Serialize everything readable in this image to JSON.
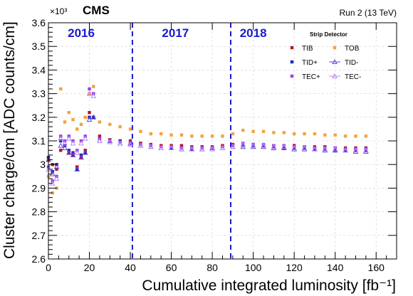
{
  "chart_data": {
    "type": "scatter",
    "experiment": "CMS",
    "run_label": "Run 2 (13 TeV)",
    "exponent_label": "×10³",
    "xlabel": "Cumulative integrated luminosity [fb⁻¹]",
    "ylabel": "Cluster charge/cm [ADC counts/cm]",
    "xlim": [
      0,
      170
    ],
    "ylim": [
      2.6,
      3.6
    ],
    "grid": true,
    "x_ticks": [
      "0",
      "20",
      "40",
      "60",
      "80",
      "100",
      "120",
      "140",
      "160"
    ],
    "y_ticks": [
      "2.6",
      "2.7",
      "2.8",
      "2.9",
      "3",
      "3.1",
      "3.2",
      "3.3",
      "3.4",
      "3.5",
      "3.6"
    ],
    "year_boundaries": [
      41,
      89
    ],
    "years": [
      {
        "label": "2016",
        "x_center": 16
      },
      {
        "label": "2017",
        "x_center": 62
      },
      {
        "label": "2018",
        "x_center": 100
      }
    ],
    "legend": {
      "title": "Strip Detector",
      "placement": "top-right"
    },
    "series": [
      {
        "name": "TIB",
        "color": "#c0101f",
        "marker": "square",
        "x": [
          0,
          2,
          4,
          6,
          8,
          10,
          12,
          14,
          16,
          18,
          20,
          22,
          25,
          30,
          35,
          40,
          45,
          50,
          55,
          60,
          65,
          70,
          75,
          80,
          85,
          90,
          95,
          100,
          105,
          110,
          115,
          120,
          125,
          130,
          135,
          140,
          145,
          150,
          155
        ],
        "y": [
          3.02,
          3.0,
          2.98,
          3.06,
          3.08,
          3.05,
          3.04,
          2.99,
          3.03,
          3.06,
          3.22,
          3.2,
          3.12,
          3.105,
          3.1,
          3.1,
          3.09,
          3.085,
          3.08,
          3.08,
          3.08,
          3.075,
          3.075,
          3.075,
          3.08,
          3.085,
          3.085,
          3.085,
          3.08,
          3.08,
          3.08,
          3.08,
          3.075,
          3.075,
          3.075,
          3.07,
          3.07,
          3.07,
          3.07
        ]
      },
      {
        "name": "TOB",
        "color": "#f5a23b",
        "marker": "square",
        "x": [
          0,
          2,
          4,
          6,
          8,
          10,
          12,
          14,
          16,
          18,
          20,
          22,
          25,
          30,
          35,
          40,
          45,
          50,
          55,
          60,
          65,
          70,
          75,
          80,
          85,
          90,
          95,
          100,
          105,
          110,
          115,
          120,
          125,
          130,
          135,
          140,
          145,
          150,
          155
        ],
        "y": [
          2.95,
          2.88,
          2.9,
          3.32,
          3.18,
          3.22,
          3.19,
          3.15,
          3.17,
          3.2,
          3.3,
          3.33,
          3.18,
          3.17,
          3.16,
          3.15,
          3.14,
          3.13,
          3.13,
          3.125,
          3.125,
          3.12,
          3.12,
          3.12,
          3.12,
          3.13,
          3.145,
          3.14,
          3.14,
          3.135,
          3.135,
          3.13,
          3.13,
          3.13,
          3.125,
          3.125,
          3.12,
          3.12,
          3.12
        ]
      },
      {
        "name": "TID+",
        "color": "#2a1fc7",
        "marker": "square",
        "x": [
          0,
          2,
          4,
          6,
          8,
          10,
          12,
          14,
          16,
          18,
          20,
          22,
          25,
          30,
          35,
          40,
          45,
          50,
          55,
          60,
          65,
          70,
          75,
          80,
          85,
          90,
          95,
          100,
          105,
          110,
          115,
          120,
          125,
          130,
          135,
          140,
          145,
          150,
          155
        ],
        "y": [
          3.03,
          2.97,
          3.0,
          3.1,
          3.08,
          3.06,
          3.05,
          2.98,
          3.04,
          3.05,
          3.2,
          3.2,
          3.11,
          3.1,
          3.1,
          3.09,
          3.085,
          3.08,
          3.075,
          3.07,
          3.07,
          3.065,
          3.07,
          3.07,
          3.075,
          3.08,
          3.08,
          3.08,
          3.08,
          3.075,
          3.07,
          3.07,
          3.07,
          3.065,
          3.065,
          3.06,
          3.06,
          3.06,
          3.06
        ]
      },
      {
        "name": "TID-",
        "color": "#5a4fd9",
        "marker": "open-triangle",
        "x": [
          0,
          2,
          4,
          6,
          8,
          10,
          12,
          14,
          16,
          18,
          20,
          22,
          25,
          30,
          35,
          40,
          45,
          50,
          55,
          60,
          65,
          70,
          75,
          80,
          85,
          90,
          95,
          100,
          105,
          110,
          115,
          120,
          125,
          130,
          135,
          140,
          145,
          150,
          155
        ],
        "y": [
          3.02,
          2.96,
          2.99,
          3.08,
          3.07,
          3.05,
          3.04,
          2.98,
          3.03,
          3.05,
          3.19,
          3.2,
          3.1,
          3.1,
          3.09,
          3.09,
          3.08,
          3.075,
          3.07,
          3.07,
          3.065,
          3.065,
          3.065,
          3.07,
          3.07,
          3.075,
          3.075,
          3.075,
          3.075,
          3.07,
          3.07,
          3.065,
          3.065,
          3.065,
          3.06,
          3.06,
          3.06,
          3.055,
          3.055
        ]
      },
      {
        "name": "TEC+",
        "color": "#9a3ff0",
        "marker": "square",
        "x": [
          0,
          2,
          4,
          6,
          8,
          10,
          12,
          14,
          16,
          18,
          20,
          22,
          25,
          30,
          35,
          40,
          45,
          50,
          55,
          60,
          65,
          70,
          75,
          80,
          85,
          90,
          95,
          100,
          105,
          110,
          115,
          120,
          125,
          130,
          135,
          140,
          145,
          150,
          155
        ],
        "y": [
          2.99,
          2.93,
          2.95,
          3.12,
          3.1,
          3.12,
          3.1,
          3.06,
          3.1,
          3.12,
          3.32,
          3.3,
          3.11,
          3.1,
          3.095,
          3.09,
          3.085,
          3.08,
          3.075,
          3.075,
          3.07,
          3.07,
          3.07,
          3.07,
          3.075,
          3.08,
          3.09,
          3.085,
          3.085,
          3.08,
          3.08,
          3.075,
          3.075,
          3.07,
          3.07,
          3.07,
          3.065,
          3.065,
          3.065
        ]
      },
      {
        "name": "TEC-",
        "color": "#b98af2",
        "marker": "open-triangle",
        "x": [
          0,
          2,
          4,
          6,
          8,
          10,
          12,
          14,
          16,
          18,
          20,
          22,
          25,
          30,
          35,
          40,
          45,
          50,
          55,
          60,
          65,
          70,
          75,
          80,
          85,
          90,
          95,
          100,
          105,
          110,
          115,
          120,
          125,
          130,
          135,
          140,
          145,
          150,
          155
        ],
        "y": [
          2.98,
          2.92,
          2.94,
          3.11,
          3.09,
          3.11,
          3.09,
          3.05,
          3.09,
          3.11,
          3.3,
          3.29,
          3.1,
          3.095,
          3.09,
          3.085,
          3.08,
          3.075,
          3.07,
          3.07,
          3.065,
          3.065,
          3.065,
          3.065,
          3.07,
          3.075,
          3.085,
          3.08,
          3.08,
          3.075,
          3.075,
          3.07,
          3.07,
          3.065,
          3.065,
          3.065,
          3.06,
          3.06,
          3.06
        ]
      }
    ]
  }
}
